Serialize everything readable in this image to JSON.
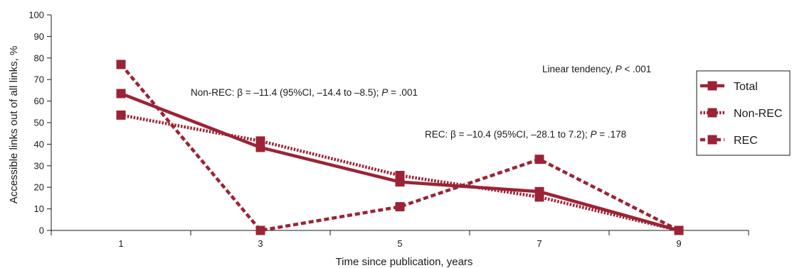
{
  "chart_data": {
    "type": "line",
    "title": "",
    "xlabel": "Time since publication, years",
    "ylabel": "Accessible links out of all links, %",
    "x": [
      1,
      3,
      5,
      7,
      9
    ],
    "x_ticks": [
      "1",
      "3",
      "5",
      "7",
      "9"
    ],
    "xlim": [
      0,
      10
    ],
    "ylim": [
      0,
      100
    ],
    "y_ticks": [
      "0",
      "10",
      "20",
      "30",
      "40",
      "50",
      "60",
      "70",
      "80",
      "90",
      "100"
    ],
    "grid": false,
    "legend_position": "right",
    "series": [
      {
        "name": "Total",
        "values": [
          63.5,
          38.5,
          22.5,
          18.0,
          0
        ],
        "color": "#9b2335",
        "style": "solid"
      },
      {
        "name": "Non-REC",
        "values": [
          53.5,
          41.5,
          25.5,
          15.5,
          0
        ],
        "color": "#9b2335",
        "style": "dotted"
      },
      {
        "name": "REC",
        "values": [
          77.0,
          0,
          11.0,
          33.0,
          0
        ],
        "color": "#9b2335",
        "style": "dashed"
      }
    ],
    "annotations": {
      "linear": {
        "pre": "Linear tendency, ",
        "p": "P",
        "post": " < .001"
      },
      "nonrec": {
        "pre": "Non-REC: β  = –11.4 (95%CI,  –14.4 to –8.5); ",
        "p": "P",
        "post": " = .001"
      },
      "rec": {
        "pre": "REC: β =  –10.4 (95%CI,   –28.1 to 7.2); ",
        "p": "P",
        "post": " = .178"
      }
    }
  }
}
